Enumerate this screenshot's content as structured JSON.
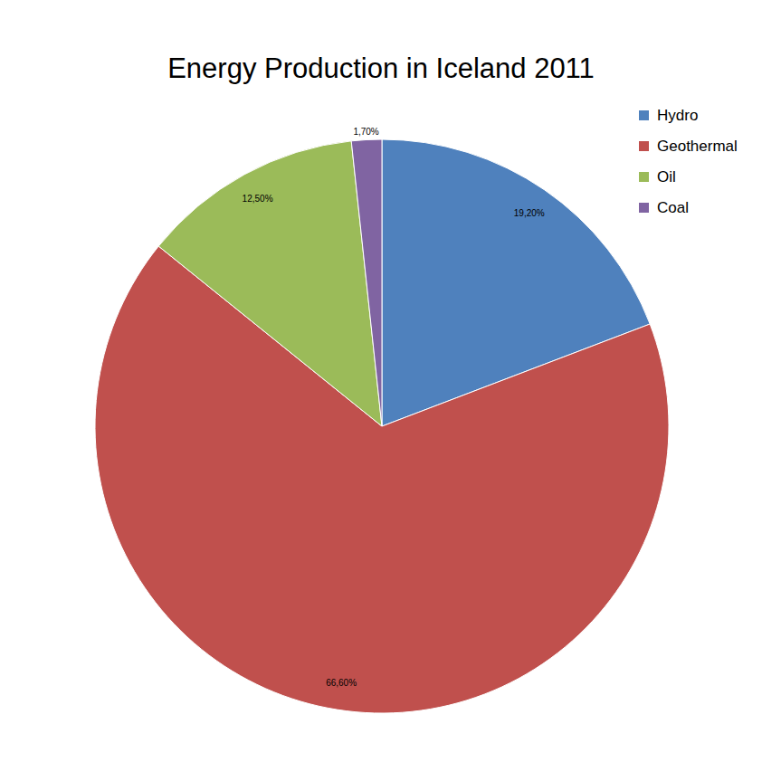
{
  "chart_data": {
    "type": "pie",
    "title": "Energy Production in Iceland 2011",
    "categories": [
      "Hydro",
      "Geothermal",
      "Oil",
      "Coal"
    ],
    "values": [
      19.2,
      66.6,
      12.5,
      1.7
    ],
    "value_labels": [
      "19,20%",
      "66,60%",
      "12,50%",
      "1,70%"
    ],
    "colors": [
      "#4f81bd",
      "#c0504d",
      "#9bbb59",
      "#8064a2"
    ],
    "data_labels": true,
    "legend": "top-right"
  }
}
